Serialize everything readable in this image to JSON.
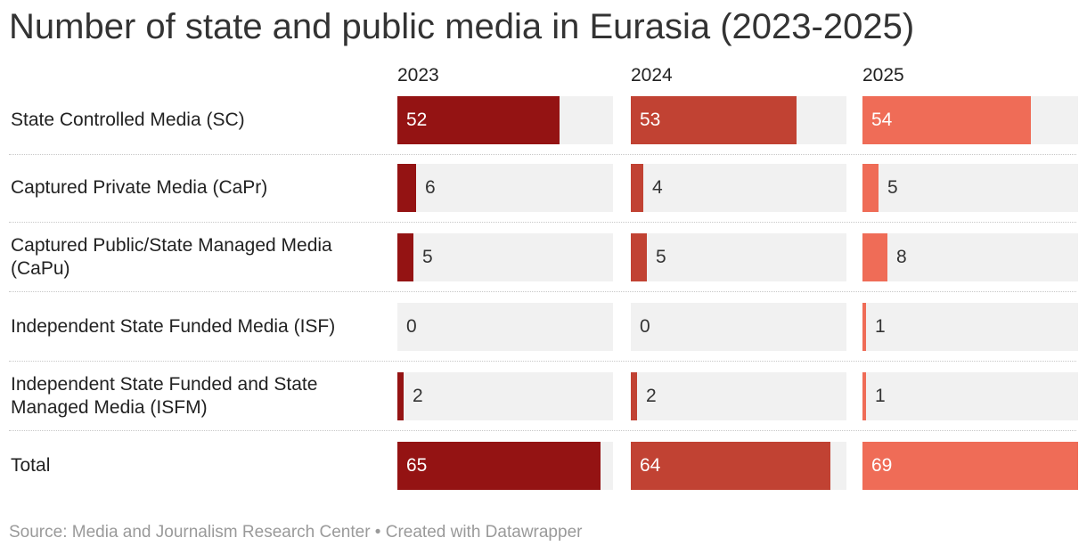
{
  "chart_data": {
    "type": "bar",
    "title": "Number of state and public media in Eurasia (2023-2025)",
    "categories": [
      "State Controlled Media (SC)",
      "Captured Private Media (CaPr)",
      "Captured Public/State Managed Media (CaPu)",
      "Independent State Funded Media (ISF)",
      "Independent State Funded and State Managed Media (ISFM)",
      "Total"
    ],
    "series": [
      {
        "name": "2023",
        "color": "#941313",
        "values": [
          52,
          6,
          5,
          0,
          2,
          65
        ]
      },
      {
        "name": "2024",
        "color": "#c14233",
        "values": [
          53,
          4,
          5,
          0,
          2,
          64
        ]
      },
      {
        "name": "2025",
        "color": "#ef6c57",
        "values": [
          54,
          5,
          8,
          1,
          1,
          69
        ]
      }
    ],
    "xlim": [
      0,
      69
    ],
    "xlabel": "",
    "ylabel": ""
  },
  "footer": {
    "text": "Source: Media and Journalism Research Center • Created with Datawrapper"
  }
}
